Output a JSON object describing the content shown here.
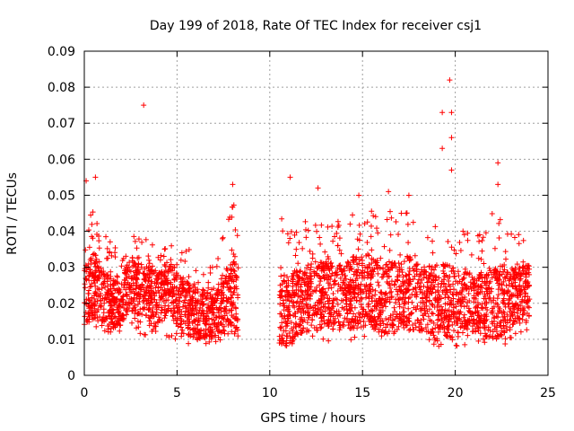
{
  "chart_data": {
    "type": "scatter",
    "title": "Day 199 of 2018, Rate Of TEC Index for receiver csj1",
    "xlabel": "GPS time / hours",
    "ylabel": "ROTI / TECUs",
    "xlim": [
      0,
      25
    ],
    "ylim": [
      0,
      0.09
    ],
    "xticks": [
      "0",
      "5",
      "10",
      "15",
      "20",
      "25"
    ],
    "yticks": [
      "0",
      "0.01",
      "0.02",
      "0.03",
      "0.04",
      "0.05",
      "0.06",
      "0.07",
      "0.08",
      "0.09"
    ],
    "grid": true,
    "marker": "+",
    "color": "#ff0000",
    "gap_hours": [
      8.3,
      10.5
    ],
    "outliers": [
      {
        "x": 3.2,
        "y": 0.075
      },
      {
        "x": 19.7,
        "y": 0.082
      },
      {
        "x": 19.3,
        "y": 0.073
      },
      {
        "x": 19.8,
        "y": 0.073
      },
      {
        "x": 19.8,
        "y": 0.066
      },
      {
        "x": 19.3,
        "y": 0.063
      },
      {
        "x": 19.8,
        "y": 0.057
      },
      {
        "x": 22.3,
        "y": 0.059
      },
      {
        "x": 22.3,
        "y": 0.053
      },
      {
        "x": 0.1,
        "y": 0.054
      },
      {
        "x": 0.6,
        "y": 0.055
      },
      {
        "x": 8.0,
        "y": 0.053
      },
      {
        "x": 11.1,
        "y": 0.055
      },
      {
        "x": 12.6,
        "y": 0.052
      },
      {
        "x": 14.8,
        "y": 0.05
      },
      {
        "x": 16.4,
        "y": 0.051
      },
      {
        "x": 17.5,
        "y": 0.05
      }
    ],
    "series": [
      {
        "name": "ROTI",
        "x": [
          0,
          0.5,
          1,
          1.5,
          2,
          2.5,
          3,
          3.5,
          4,
          4.5,
          5,
          5.5,
          6,
          6.5,
          7,
          7.5,
          8,
          10.5,
          11,
          11.5,
          12,
          12.5,
          13,
          13.5,
          14,
          14.5,
          15,
          15.5,
          16,
          16.5,
          17,
          17.5,
          18,
          18.5,
          19,
          19.5,
          20,
          20.5,
          21,
          21.5,
          22,
          22.5,
          23,
          23.5,
          24
        ],
        "mean": [
          0.021,
          0.025,
          0.022,
          0.02,
          0.021,
          0.025,
          0.025,
          0.022,
          0.021,
          0.025,
          0.022,
          0.019,
          0.017,
          0.017,
          0.016,
          0.02,
          0.022,
          0.016,
          0.018,
          0.02,
          0.021,
          0.022,
          0.022,
          0.022,
          0.022,
          0.023,
          0.024,
          0.023,
          0.021,
          0.021,
          0.022,
          0.023,
          0.022,
          0.021,
          0.021,
          0.021,
          0.02,
          0.02,
          0.02,
          0.02,
          0.02,
          0.02,
          0.022,
          0.022,
          0.023
        ],
        "max": [
          0.043,
          0.047,
          0.039,
          0.038,
          0.038,
          0.039,
          0.039,
          0.038,
          0.038,
          0.037,
          0.038,
          0.036,
          0.035,
          0.032,
          0.03,
          0.04,
          0.048,
          0.043,
          0.045,
          0.042,
          0.043,
          0.045,
          0.044,
          0.043,
          0.043,
          0.045,
          0.047,
          0.046,
          0.044,
          0.046,
          0.045,
          0.046,
          0.045,
          0.044,
          0.043,
          0.044,
          0.043,
          0.04,
          0.039,
          0.04,
          0.045,
          0.043,
          0.04,
          0.039,
          0.042
        ],
        "min": [
          0.01,
          0.012,
          0.011,
          0.012,
          0.012,
          0.011,
          0.01,
          0.009,
          0.01,
          0.01,
          0.009,
          0.008,
          0.008,
          0.008,
          0.008,
          0.008,
          0.011,
          0.009,
          0.008,
          0.009,
          0.009,
          0.01,
          0.009,
          0.008,
          0.008,
          0.008,
          0.007,
          0.01,
          0.01,
          0.009,
          0.009,
          0.008,
          0.008,
          0.008,
          0.008,
          0.007,
          0.008,
          0.008,
          0.008,
          0.008,
          0.008,
          0.008,
          0.009,
          0.01,
          0.012
        ]
      }
    ]
  }
}
